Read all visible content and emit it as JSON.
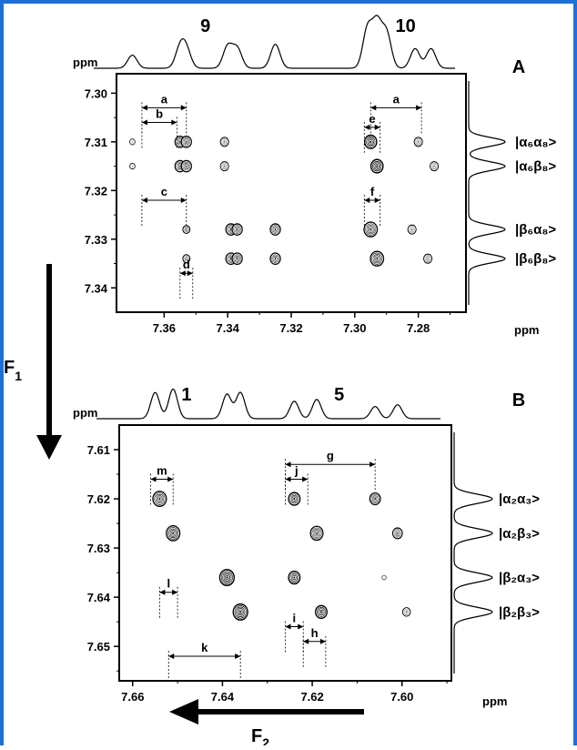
{
  "chart_data": [
    {
      "type": "contour",
      "panel_label": "A",
      "unit_label": "ppm",
      "x_range": [
        7.375,
        7.265
      ],
      "y_range": [
        7.296,
        7.345
      ],
      "x_ticks": [
        7.36,
        7.34,
        7.32,
        7.3,
        7.28
      ],
      "x_tick_labels": [
        "7.36",
        "7.34",
        "7.32",
        "7.30",
        "7.28"
      ],
      "y_ticks": [
        7.3,
        7.31,
        7.32,
        7.33,
        7.34
      ],
      "y_tick_labels": [
        "7.30",
        "7.31",
        "7.32",
        "7.33",
        "7.34"
      ],
      "group_labels": [
        {
          "text": "9",
          "x": 7.347
        },
        {
          "text": "10",
          "x": 7.284
        }
      ],
      "f1_peaks": [
        {
          "y": 7.31,
          "state": "α6α8",
          "ket": "|α₆α₈>"
        },
        {
          "y": 7.315,
          "state": "α6β8",
          "ket": "|α₆β₈>"
        },
        {
          "y": 7.328,
          "state": "β6α8",
          "ket": "|β₆α₈>"
        },
        {
          "y": 7.334,
          "state": "β6β8",
          "ket": "|β₆β₈>"
        }
      ],
      "peaks": [
        {
          "x": 7.37,
          "y": 7.31,
          "size": 0.5
        },
        {
          "x": 7.37,
          "y": 7.315,
          "size": 0.5
        },
        {
          "x": 7.355,
          "y": 7.31,
          "size": 1.0
        },
        {
          "x": 7.353,
          "y": 7.31,
          "size": 1.0
        },
        {
          "x": 7.355,
          "y": 7.315,
          "size": 1.0
        },
        {
          "x": 7.353,
          "y": 7.315,
          "size": 1.0
        },
        {
          "x": 7.341,
          "y": 7.31,
          "size": 0.8
        },
        {
          "x": 7.341,
          "y": 7.315,
          "size": 0.8
        },
        {
          "x": 7.353,
          "y": 7.328,
          "size": 0.7
        },
        {
          "x": 7.353,
          "y": 7.334,
          "size": 0.7
        },
        {
          "x": 7.339,
          "y": 7.328,
          "size": 1.0
        },
        {
          "x": 7.337,
          "y": 7.328,
          "size": 1.0
        },
        {
          "x": 7.339,
          "y": 7.334,
          "size": 1.0
        },
        {
          "x": 7.337,
          "y": 7.334,
          "size": 1.0
        },
        {
          "x": 7.325,
          "y": 7.328,
          "size": 1.0
        },
        {
          "x": 7.325,
          "y": 7.334,
          "size": 1.0
        },
        {
          "x": 7.295,
          "y": 7.31,
          "size": 1.2
        },
        {
          "x": 7.293,
          "y": 7.315,
          "size": 1.2
        },
        {
          "x": 7.295,
          "y": 7.328,
          "size": 1.3
        },
        {
          "x": 7.293,
          "y": 7.334,
          "size": 1.3
        },
        {
          "x": 7.28,
          "y": 7.31,
          "size": 0.8
        },
        {
          "x": 7.275,
          "y": 7.315,
          "size": 0.8
        },
        {
          "x": 7.282,
          "y": 7.328,
          "size": 0.8
        },
        {
          "x": 7.277,
          "y": 7.334,
          "size": 0.8
        }
      ],
      "annotations": [
        {
          "label": "a",
          "x1": 7.367,
          "x2": 7.353,
          "y": 7.303
        },
        {
          "label": "b",
          "x1": 7.367,
          "x2": 7.356,
          "y": 7.306
        },
        {
          "label": "c",
          "x1": 7.367,
          "x2": 7.353,
          "y": 7.322
        },
        {
          "label": "d",
          "x1": 7.355,
          "x2": 7.351,
          "y": 7.337
        },
        {
          "label": "e",
          "x1": 7.297,
          "x2": 7.292,
          "y": 7.307
        },
        {
          "label": "a",
          "x1": 7.295,
          "x2": 7.279,
          "y": 7.303
        },
        {
          "label": "f",
          "x1": 7.297,
          "x2": 7.292,
          "y": 7.322
        }
      ],
      "projection_top": [
        {
          "x": 7.37,
          "h": 0.3
        },
        {
          "x": 7.355,
          "h": 0.45
        },
        {
          "x": 7.353,
          "h": 0.4
        },
        {
          "x": 7.34,
          "h": 0.5
        },
        {
          "x": 7.337,
          "h": 0.45
        },
        {
          "x": 7.325,
          "h": 0.55
        },
        {
          "x": 7.296,
          "h": 0.9
        },
        {
          "x": 7.293,
          "h": 1.0
        },
        {
          "x": 7.29,
          "h": 0.8
        },
        {
          "x": 7.281,
          "h": 0.45
        },
        {
          "x": 7.276,
          "h": 0.45
        }
      ]
    },
    {
      "type": "contour",
      "panel_label": "B",
      "unit_label": "ppm",
      "x_range": [
        7.663,
        7.589
      ],
      "y_range": [
        7.605,
        7.657
      ],
      "x_ticks": [
        7.66,
        7.64,
        7.62,
        7.6
      ],
      "x_tick_labels": [
        "7.66",
        "7.64",
        "7.62",
        "7.60"
      ],
      "y_ticks": [
        7.61,
        7.62,
        7.63,
        7.64,
        7.65
      ],
      "y_tick_labels": [
        "7.61",
        "7.62",
        "7.63",
        "7.64",
        "7.65"
      ],
      "group_labels": [
        {
          "text": "1",
          "x": 7.648
        },
        {
          "text": "5",
          "x": 7.614
        }
      ],
      "f1_peaks": [
        {
          "y": 7.62,
          "state": "α2α3",
          "ket": "|α₂α₃>"
        },
        {
          "y": 7.627,
          "state": "α2β3",
          "ket": "|α₂β₃>"
        },
        {
          "y": 7.636,
          "state": "β2α3",
          "ket": "|β₂α₃>"
        },
        {
          "y": 7.643,
          "state": "β2β3",
          "ket": "|β₂β₃>"
        }
      ],
      "peaks": [
        {
          "x": 7.654,
          "y": 7.62,
          "size": 1.4
        },
        {
          "x": 7.651,
          "y": 7.627,
          "size": 1.4
        },
        {
          "x": 7.639,
          "y": 7.636,
          "size": 1.5
        },
        {
          "x": 7.636,
          "y": 7.643,
          "size": 1.5
        },
        {
          "x": 7.624,
          "y": 7.62,
          "size": 1.2
        },
        {
          "x": 7.619,
          "y": 7.627,
          "size": 1.3
        },
        {
          "x": 7.624,
          "y": 7.636,
          "size": 1.2
        },
        {
          "x": 7.618,
          "y": 7.643,
          "size": 1.2
        },
        {
          "x": 7.606,
          "y": 7.62,
          "size": 1.1
        },
        {
          "x": 7.601,
          "y": 7.627,
          "size": 1.0
        },
        {
          "x": 7.604,
          "y": 7.636,
          "size": 0.4
        },
        {
          "x": 7.599,
          "y": 7.643,
          "size": 0.8
        }
      ],
      "annotations": [
        {
          "label": "m",
          "x1": 7.656,
          "x2": 7.651,
          "y": 7.616
        },
        {
          "label": "j",
          "x1": 7.626,
          "x2": 7.621,
          "y": 7.616
        },
        {
          "label": "g",
          "x1": 7.626,
          "x2": 7.606,
          "y": 7.613
        },
        {
          "label": "l",
          "x1": 7.654,
          "x2": 7.65,
          "y": 7.639
        },
        {
          "label": "k",
          "x1": 7.652,
          "x2": 7.636,
          "y": 7.652
        },
        {
          "label": "i",
          "x1": 7.626,
          "x2": 7.622,
          "y": 7.646
        },
        {
          "label": "h",
          "x1": 7.622,
          "x2": 7.617,
          "y": 7.649
        }
      ],
      "projection_top": [
        {
          "x": 7.655,
          "h": 0.75
        },
        {
          "x": 7.651,
          "h": 0.85
        },
        {
          "x": 7.639,
          "h": 0.7
        },
        {
          "x": 7.636,
          "h": 0.75
        },
        {
          "x": 7.624,
          "h": 0.5
        },
        {
          "x": 7.619,
          "h": 0.55
        },
        {
          "x": 7.606,
          "h": 0.35
        },
        {
          "x": 7.601,
          "h": 0.4
        }
      ]
    }
  ],
  "axis_labels": {
    "f1": "F",
    "f1_sub": "1",
    "f2": "F",
    "f2_sub": "2"
  }
}
